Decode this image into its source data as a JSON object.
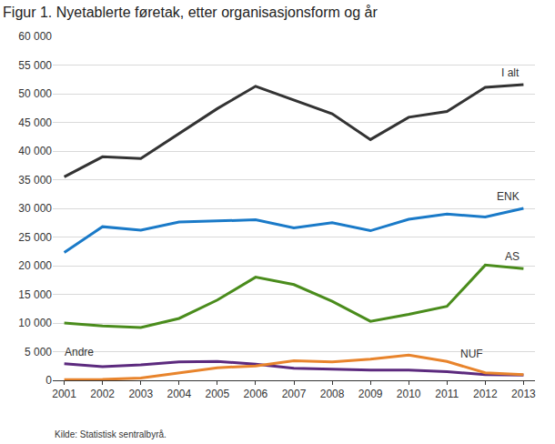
{
  "chart_data": {
    "type": "line",
    "title": "Figur 1. Nyetablerte føretak, etter organisasjonsform og år",
    "source": "Kilde: Statistisk sentralbyrå.",
    "categories": [
      "2001",
      "2002",
      "2003",
      "2004",
      "2005",
      "2006",
      "2007",
      "2008",
      "2009",
      "2010",
      "2011",
      "2012",
      "2013"
    ],
    "series": [
      {
        "name": "I alt",
        "color": "#333333",
        "values": [
          35500,
          39000,
          38700,
          43000,
          47400,
          51300,
          48900,
          46500,
          42000,
          45900,
          46900,
          51100,
          51600
        ]
      },
      {
        "name": "ENK",
        "color": "#1a7ac8",
        "values": [
          22300,
          26800,
          26200,
          27600,
          27800,
          28000,
          26600,
          27500,
          26100,
          28100,
          29000,
          28500,
          30000
        ]
      },
      {
        "name": "AS",
        "color": "#4a8c1c",
        "values": [
          10000,
          9500,
          9200,
          10800,
          14000,
          18000,
          16700,
          13800,
          10300,
          11500,
          12900,
          20100,
          19500
        ]
      },
      {
        "name": "Andre",
        "color": "#5c2a7e",
        "values": [
          2900,
          2400,
          2700,
          3200,
          3300,
          2800,
          2100,
          1900,
          1800,
          1800,
          1500,
          1000,
          900
        ]
      },
      {
        "name": "NUF",
        "color": "#e8842c",
        "values": [
          100,
          150,
          400,
          1300,
          2200,
          2500,
          3400,
          3200,
          3700,
          4400,
          3300,
          1300,
          1000
        ]
      }
    ],
    "ylim": [
      0,
      60000
    ],
    "yticks": [
      0,
      {
        "value": 5000,
        "label": "5 000"
      },
      {
        "value": 10000,
        "label": "10 000"
      },
      {
        "value": 15000,
        "label": "15 000"
      },
      {
        "value": 20000,
        "label": "20 000"
      },
      {
        "value": 25000,
        "label": "25 000"
      },
      {
        "value": 30000,
        "label": "30 000"
      },
      {
        "value": 35000,
        "label": "35 000"
      },
      {
        "value": 40000,
        "label": "40 000"
      },
      {
        "value": 45000,
        "label": "45 000"
      },
      {
        "value": 50000,
        "label": "50 000"
      },
      {
        "value": 55000,
        "label": "55 000"
      },
      {
        "value": 60000,
        "label": "60 000"
      }
    ],
    "grid": true
  }
}
